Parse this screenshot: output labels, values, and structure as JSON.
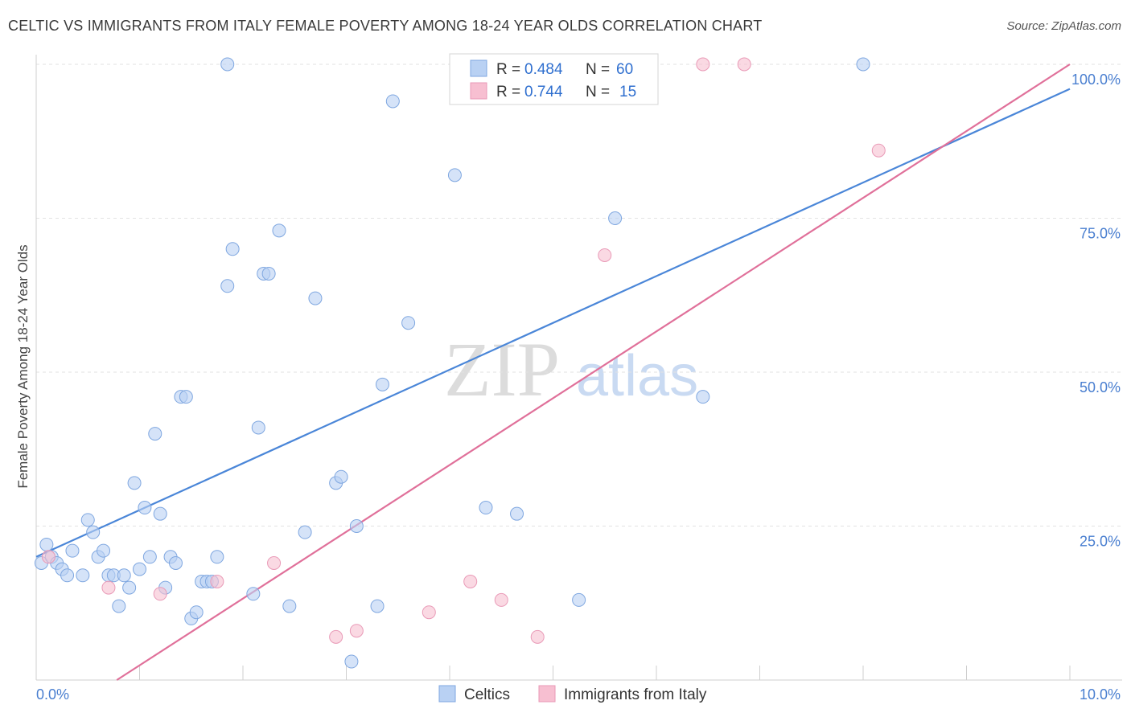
{
  "title": "CELTIC VS IMMIGRANTS FROM ITALY FEMALE POVERTY AMONG 18-24 YEAR OLDS CORRELATION CHART",
  "source": "Source: ZipAtlas.com",
  "watermark": {
    "zip": "ZIP",
    "atlas": "atlas"
  },
  "colors": {
    "celtics": "#4a86d8",
    "italy": "#e0709a",
    "celtics_fill": "#b9d1f3",
    "italy_fill": "#f7bfd1"
  },
  "legend": {
    "rows": [
      {
        "r_label": "R = ",
        "r_value": "0.484",
        "n_label": "N = ",
        "n_value": "60"
      },
      {
        "r_label": "R = ",
        "r_value": "0.744",
        "n_label": "N = ",
        "n_value": "15"
      }
    ]
  },
  "chart_data": {
    "type": "scatter",
    "ylabel": "Female Poverty Among 18-24 Year Olds",
    "xlim": [
      0,
      10
    ],
    "ylim": [
      0,
      100
    ],
    "x_tick_labels": [
      "0.0%",
      "10.0%"
    ],
    "y_ticks": [
      25,
      50,
      75,
      100
    ],
    "y_tick_labels": [
      "25.0%",
      "50.0%",
      "75.0%",
      "100.0%"
    ],
    "grid": true,
    "series": [
      {
        "name": "Celtics",
        "x": [
          0.05,
          0.1,
          0.15,
          0.2,
          0.25,
          0.3,
          0.35,
          0.45,
          0.5,
          0.55,
          0.6,
          0.65,
          0.7,
          0.75,
          0.8,
          0.85,
          0.9,
          0.95,
          1.0,
          1.05,
          1.1,
          1.15,
          1.2,
          1.25,
          1.3,
          1.35,
          1.4,
          1.45,
          1.5,
          1.55,
          1.6,
          1.65,
          1.7,
          1.75,
          1.85,
          1.85,
          1.9,
          2.1,
          2.15,
          2.2,
          2.25,
          2.35,
          2.45,
          2.6,
          2.7,
          2.9,
          2.95,
          3.05,
          3.1,
          3.3,
          3.35,
          3.45,
          3.6,
          4.05,
          4.35,
          4.65,
          5.25,
          5.6,
          6.45,
          8.0
        ],
        "y": [
          19,
          22,
          20,
          19,
          18,
          17,
          21,
          17,
          26,
          24,
          20,
          21,
          17,
          17,
          12,
          17,
          15,
          32,
          18,
          28,
          20,
          40,
          27,
          15,
          20,
          19,
          46,
          46,
          10,
          11,
          16,
          16,
          16,
          20,
          64,
          100,
          70,
          14,
          41,
          66,
          66,
          73,
          12,
          24,
          62,
          32,
          33,
          3,
          25,
          12,
          48,
          94,
          58,
          82,
          28,
          27,
          13,
          75,
          46,
          100
        ],
        "sizes": [
          1,
          1,
          1,
          1,
          1,
          1,
          1,
          1,
          1,
          1,
          1,
          1,
          1,
          1,
          1,
          1,
          1,
          1,
          1,
          1,
          1,
          1,
          1,
          1,
          1,
          1,
          1,
          1,
          1,
          1,
          1,
          1,
          1,
          1,
          1,
          1,
          1,
          1,
          1,
          1,
          1,
          1,
          1,
          1,
          1,
          1,
          1,
          1,
          1,
          1,
          1,
          1,
          1,
          1,
          1,
          1,
          1,
          1,
          1,
          1
        ]
      },
      {
        "name": "Immigrants from Italy",
        "x": [
          0.12,
          0.7,
          1.2,
          1.75,
          2.3,
          2.9,
          3.1,
          3.8,
          4.2,
          4.5,
          4.85,
          5.5,
          6.45,
          6.85,
          8.15
        ],
        "y": [
          20,
          15,
          14,
          16,
          19,
          7,
          8,
          11,
          16,
          13,
          7,
          69,
          100,
          100,
          86
        ],
        "sizes": [
          1,
          1,
          1,
          1,
          1,
          1,
          1,
          1,
          1,
          1,
          1,
          1,
          1,
          1,
          1
        ]
      }
    ],
    "trendlines": [
      {
        "series": "Celtics",
        "x": [
          0,
          10
        ],
        "y": [
          20,
          96
        ]
      },
      {
        "series": "Immigrants from Italy",
        "x": [
          0.78,
          10
        ],
        "y": [
          0,
          100
        ]
      }
    ]
  }
}
